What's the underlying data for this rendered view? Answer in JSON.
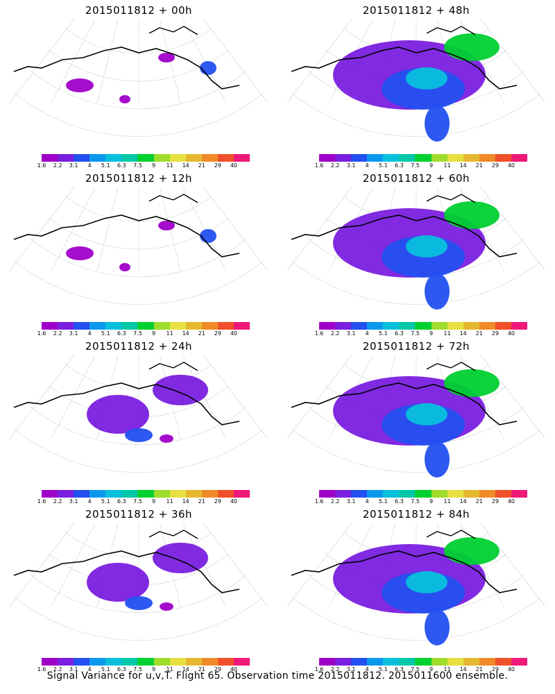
{
  "panels": [
    {
      "title": "2015011812 + 00h",
      "coverage": "low"
    },
    {
      "title": "2015011812 + 48h",
      "coverage": "high"
    },
    {
      "title": "2015011812 + 12h",
      "coverage": "low"
    },
    {
      "title": "2015011812 + 60h",
      "coverage": "high"
    },
    {
      "title": "2015011812 + 24h",
      "coverage": "medium"
    },
    {
      "title": "2015011812 + 72h",
      "coverage": "high"
    },
    {
      "title": "2015011812 + 36h",
      "coverage": "medium"
    },
    {
      "title": "2015011812 + 84h",
      "coverage": "high"
    }
  ],
  "colorbar": {
    "labels": [
      "1.6",
      "2.2",
      "3.1",
      "4",
      "5.1",
      "6.3",
      "7.5",
      "9",
      "11",
      "14",
      "21",
      "29",
      "40"
    ],
    "colors": [
      "#9f00c8",
      "#7a1fe0",
      "#2350f0",
      "#0a98ee",
      "#08c0dc",
      "#00c8a8",
      "#00d030",
      "#a0dc2c",
      "#e6e040",
      "#e6b830",
      "#f08a28",
      "#f0502a",
      "#f01878"
    ]
  },
  "footer": "Signal Variance for u,v,T. Flight 65. Observation time 2015011812. 2015011600 ensemble."
}
